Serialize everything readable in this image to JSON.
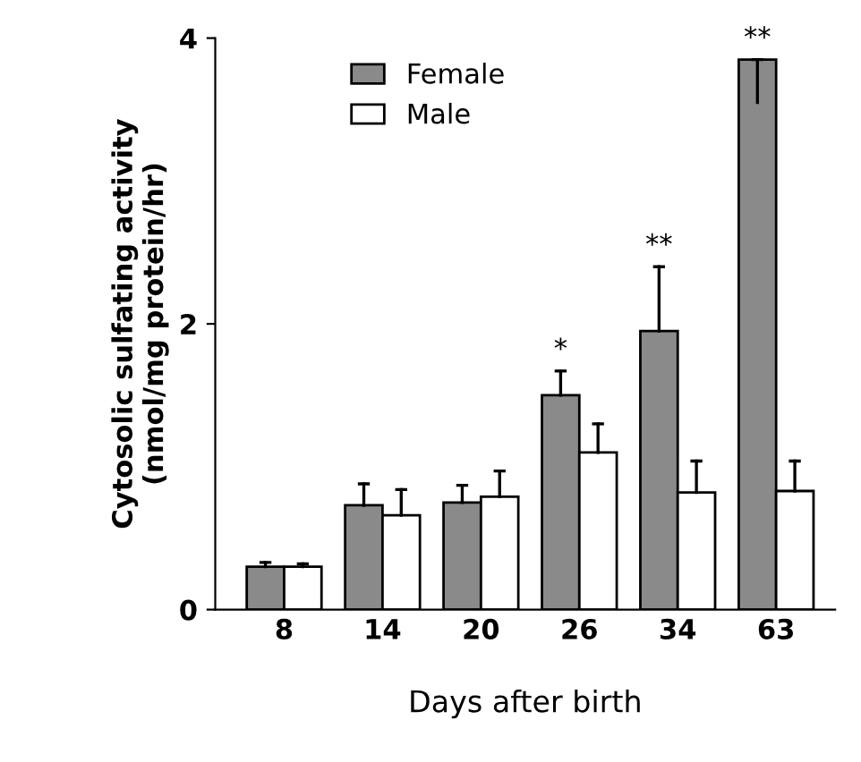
{
  "chart_data": {
    "type": "bar",
    "xlabel": "Days after birth",
    "ylabel": "Cytosolic sulfating activity\n(nmol/mg protein/hr)",
    "categories": [
      "8",
      "14",
      "20",
      "26",
      "34",
      "63"
    ],
    "series": [
      {
        "name": "Female",
        "color": "#8a8a8a",
        "values": [
          0.3,
          0.73,
          0.75,
          1.5,
          1.95,
          3.85
        ],
        "errors": [
          0.03,
          0.15,
          0.12,
          0.17,
          0.45,
          [
            3.55,
            3.85
          ]
        ]
      },
      {
        "name": "Male",
        "color": "#ffffff",
        "values": [
          0.3,
          0.66,
          0.79,
          1.1,
          0.82,
          0.83
        ],
        "errors": [
          0.02,
          0.18,
          0.18,
          0.2,
          0.22,
          0.21
        ]
      }
    ],
    "annotations": [
      "*",
      "**",
      "**"
    ],
    "ylim": [
      0,
      4
    ],
    "yticks": [
      0,
      2,
      4
    ],
    "grid": false,
    "legend": "top left"
  }
}
